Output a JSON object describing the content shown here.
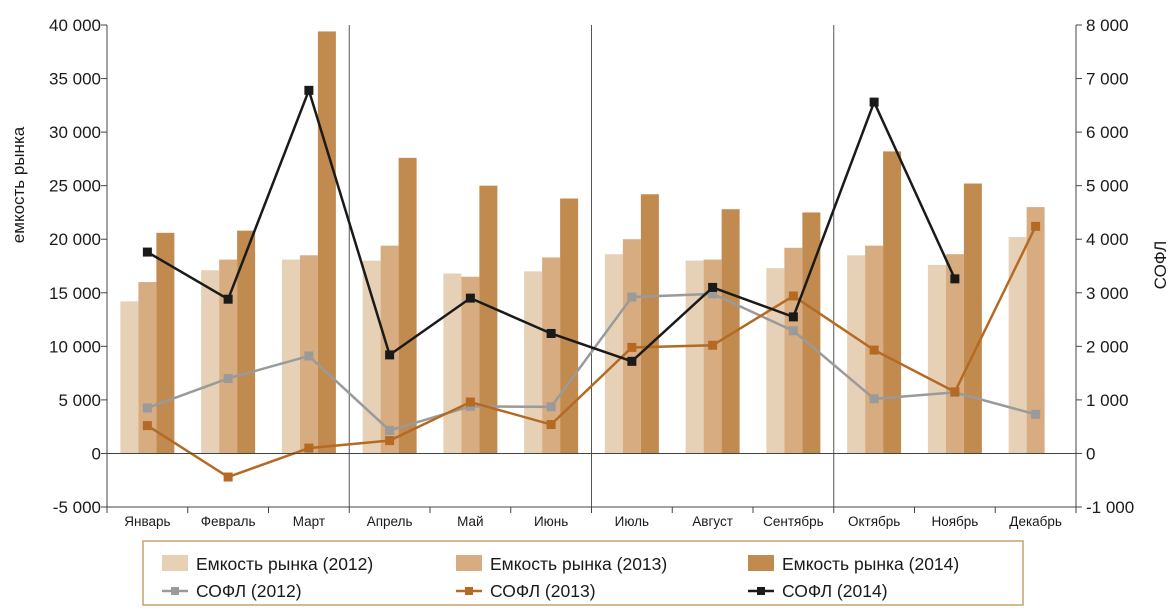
{
  "chart_data": {
    "type": "bar",
    "ylabel": "емкость рынка",
    "y2label": "СОФЛ",
    "ylim": [
      -5000,
      40000
    ],
    "y2lim": [
      -1000,
      8000
    ],
    "yticks": [
      "-5 000",
      "0",
      "5 000",
      "10 000",
      "15 000",
      "20 000",
      "25 000",
      "30 000",
      "35 000",
      "40 000"
    ],
    "y2ticks": [
      "-1 000",
      "0",
      "1 000",
      "2 000",
      "3 000",
      "4 000",
      "5 000",
      "6 000",
      "7 000",
      "8 000"
    ],
    "categories": [
      "Январь",
      "Февраль",
      "Март",
      "Апрель",
      "Май",
      "Июнь",
      "Июль",
      "Август",
      "Сентябрь",
      "Октябрь",
      "Ноябрь",
      "Декабрь"
    ],
    "quarter_separators_after": [
      "Март",
      "Июнь",
      "Сентябрь"
    ],
    "bar_series": [
      {
        "name": "Емкость рынка (2012)",
        "color": "#e6d1b6",
        "values": [
          14200,
          17100,
          18100,
          18000,
          16800,
          17000,
          18600,
          18000,
          17300,
          18500,
          17600,
          20200
        ]
      },
      {
        "name": "Емкость рынка (2013)",
        "color": "#d6ac80",
        "values": [
          16000,
          18100,
          18500,
          19400,
          16500,
          18300,
          20000,
          18100,
          19200,
          19400,
          18600,
          23000
        ]
      },
      {
        "name": "Емкость рынка (2014)",
        "color": "#c18a4f",
        "values": [
          20600,
          20800,
          39400,
          27600,
          25000,
          23800,
          24200,
          22800,
          22500,
          28200,
          25200,
          null
        ]
      }
    ],
    "line_series": [
      {
        "name": "СОФЛ (2012)",
        "color": "#9a9a9a",
        "values": [
          850,
          1400,
          1820,
          430,
          880,
          870,
          2920,
          2980,
          2290,
          1020,
          1140,
          730
        ]
      },
      {
        "name": "СОФЛ (2013)",
        "color": "#b56a24",
        "values": [
          520,
          -440,
          100,
          240,
          960,
          540,
          1980,
          2020,
          2940,
          1930,
          1150,
          4240
        ]
      },
      {
        "name": "СОФЛ (2014)",
        "color": "#1a1a1a",
        "values": [
          3760,
          2880,
          6780,
          1840,
          2900,
          2240,
          1720,
          3100,
          2550,
          6560,
          3260,
          null
        ]
      }
    ],
    "legend": [
      {
        "label": "Емкость рынка (2012)",
        "kind": "bar",
        "color": "#e6d1b6"
      },
      {
        "label": "Емкость рынка (2013)",
        "kind": "bar",
        "color": "#d6ac80"
      },
      {
        "label": "Емкость рынка (2014)",
        "kind": "bar",
        "color": "#c18a4f"
      },
      {
        "label": "СОФЛ (2012)",
        "kind": "line",
        "color": "#9a9a9a"
      },
      {
        "label": "СОФЛ (2013)",
        "kind": "line",
        "color": "#b56a24"
      },
      {
        "label": "СОФЛ (2014)",
        "kind": "line",
        "color": "#1a1a1a"
      }
    ],
    "legend_position": "bottom",
    "legend_border_color": "#c9a271",
    "grid": false
  }
}
